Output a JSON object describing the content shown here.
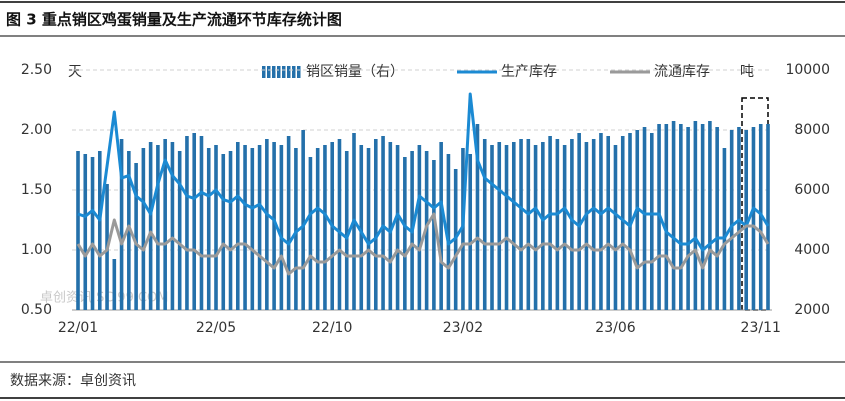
{
  "chart_data": {
    "type": "bar-line",
    "title": "图 3  重点销区鸡蛋销量及生产流通环节库存统计图",
    "source": "数据来源：卓创资讯",
    "watermark": "卓创资讯 SCI99.COM",
    "y_unit": "天",
    "y2_unit": "吨",
    "categories": [
      "22/01",
      null,
      null,
      null,
      null,
      null,
      null,
      null,
      null,
      null,
      null,
      null,
      null,
      null,
      null,
      null,
      null,
      null,
      null,
      "22/05",
      null,
      null,
      null,
      null,
      null,
      null,
      null,
      null,
      null,
      null,
      null,
      null,
      null,
      null,
      null,
      "22/10",
      null,
      null,
      null,
      null,
      null,
      null,
      null,
      null,
      null,
      null,
      null,
      null,
      null,
      null,
      null,
      null,
      null,
      "23/02",
      null,
      null,
      null,
      null,
      null,
      null,
      null,
      null,
      null,
      null,
      null,
      null,
      null,
      null,
      null,
      null,
      null,
      null,
      null,
      null,
      "23/06",
      null,
      null,
      null,
      null,
      null,
      null,
      null,
      null,
      null,
      null,
      null,
      null,
      null,
      null,
      null,
      null,
      null,
      null,
      null,
      "23/11",
      null
    ],
    "series": [
      {
        "name": "销区销量（右）",
        "kind": "bar",
        "axis": "y2",
        "color": "#2470aa",
        "values": [
          7300,
          7200,
          7100,
          7300,
          6200,
          3700,
          7700,
          7300,
          6900,
          7400,
          7600,
          7500,
          7700,
          7600,
          7300,
          7800,
          7900,
          7800,
          7400,
          7500,
          7200,
          7300,
          7600,
          7500,
          7400,
          7500,
          7700,
          7600,
          7500,
          7800,
          7400,
          8000,
          7100,
          7400,
          7500,
          7600,
          7700,
          7300,
          7900,
          7500,
          7400,
          7700,
          7800,
          7600,
          7500,
          7100,
          7300,
          7500,
          7300,
          7000,
          7600,
          7200,
          6700,
          7400,
          7200,
          8200,
          7700,
          7500,
          7600,
          7500,
          7600,
          7700,
          7700,
          7500,
          7600,
          7800,
          7700,
          7500,
          7700,
          7900,
          7600,
          7700,
          7900,
          7800,
          7500,
          7800,
          7900,
          8000,
          8100,
          7900,
          8200,
          8200,
          8300,
          8200,
          8100,
          8300,
          8200,
          8300,
          8100,
          7400,
          8000,
          8100,
          8000,
          8100,
          8200,
          8200
        ]
      },
      {
        "name": "生产库存",
        "kind": "line",
        "color": "#1b8ad3",
        "values": [
          1.3,
          1.28,
          1.33,
          1.25,
          1.7,
          2.15,
          1.6,
          1.62,
          1.45,
          1.4,
          1.3,
          1.55,
          1.75,
          1.62,
          1.55,
          1.45,
          1.43,
          1.48,
          1.45,
          1.5,
          1.42,
          1.4,
          1.45,
          1.38,
          1.35,
          1.38,
          1.3,
          1.25,
          1.1,
          1.05,
          1.15,
          1.2,
          1.3,
          1.35,
          1.3,
          1.2,
          1.15,
          1.1,
          1.25,
          1.15,
          1.05,
          1.1,
          1.2,
          1.15,
          1.3,
          1.2,
          1.15,
          1.45,
          1.4,
          1.35,
          1.4,
          1.05,
          1.1,
          1.2,
          2.3,
          1.75,
          1.6,
          1.55,
          1.5,
          1.45,
          1.4,
          1.35,
          1.3,
          1.35,
          1.25,
          1.3,
          1.3,
          1.35,
          1.25,
          1.2,
          1.3,
          1.35,
          1.3,
          1.35,
          1.3,
          1.25,
          1.2,
          1.35,
          1.3,
          1.3,
          1.3,
          1.15,
          1.1,
          1.05,
          1.05,
          1.1,
          1.0,
          1.05,
          1.1,
          1.1,
          1.2,
          1.25,
          1.2,
          1.35,
          1.3,
          1.2
        ]
      },
      {
        "name": "流通库存",
        "kind": "line",
        "color": "#9a9a9a",
        "values": [
          1.05,
          0.95,
          1.05,
          0.95,
          1.0,
          1.25,
          1.05,
          1.2,
          1.05,
          1.0,
          1.15,
          1.05,
          1.05,
          1.1,
          1.05,
          1.0,
          1.0,
          0.95,
          0.95,
          0.95,
          1.05,
          1.0,
          1.05,
          1.05,
          1.0,
          0.95,
          0.9,
          0.85,
          0.95,
          0.8,
          0.85,
          0.85,
          0.95,
          0.9,
          0.9,
          0.95,
          1.0,
          0.95,
          0.95,
          0.95,
          1.0,
          0.95,
          0.95,
          0.9,
          1.0,
          0.95,
          1.05,
          1.0,
          1.2,
          1.3,
          0.9,
          0.85,
          0.95,
          1.05,
          1.05,
          1.1,
          1.05,
          1.05,
          1.05,
          1.1,
          1.05,
          1.0,
          1.05,
          1.0,
          1.05,
          1.05,
          1.0,
          1.05,
          1.0,
          1.0,
          1.05,
          1.0,
          1.0,
          1.05,
          1.0,
          1.05,
          1.0,
          0.85,
          0.9,
          0.9,
          0.95,
          0.95,
          0.85,
          0.85,
          0.95,
          1.0,
          0.85,
          1.0,
          0.95,
          1.05,
          1.1,
          1.15,
          1.2,
          1.2,
          1.15,
          1.05
        ]
      }
    ],
    "ylim": [
      0.5,
      2.5
    ],
    "yticks": [
      {
        "value": 0.5,
        "label": "0.50"
      },
      {
        "value": 1,
        "label": "1.00"
      },
      {
        "value": 1.5,
        "label": "1.50"
      },
      {
        "value": 2,
        "label": "2.00"
      },
      {
        "value": 2.5,
        "label": "2.50"
      }
    ],
    "y2lim": [
      2000,
      10000
    ],
    "y2ticks": [
      2000,
      4000,
      6000,
      8000,
      10000
    ],
    "grid": true
  }
}
